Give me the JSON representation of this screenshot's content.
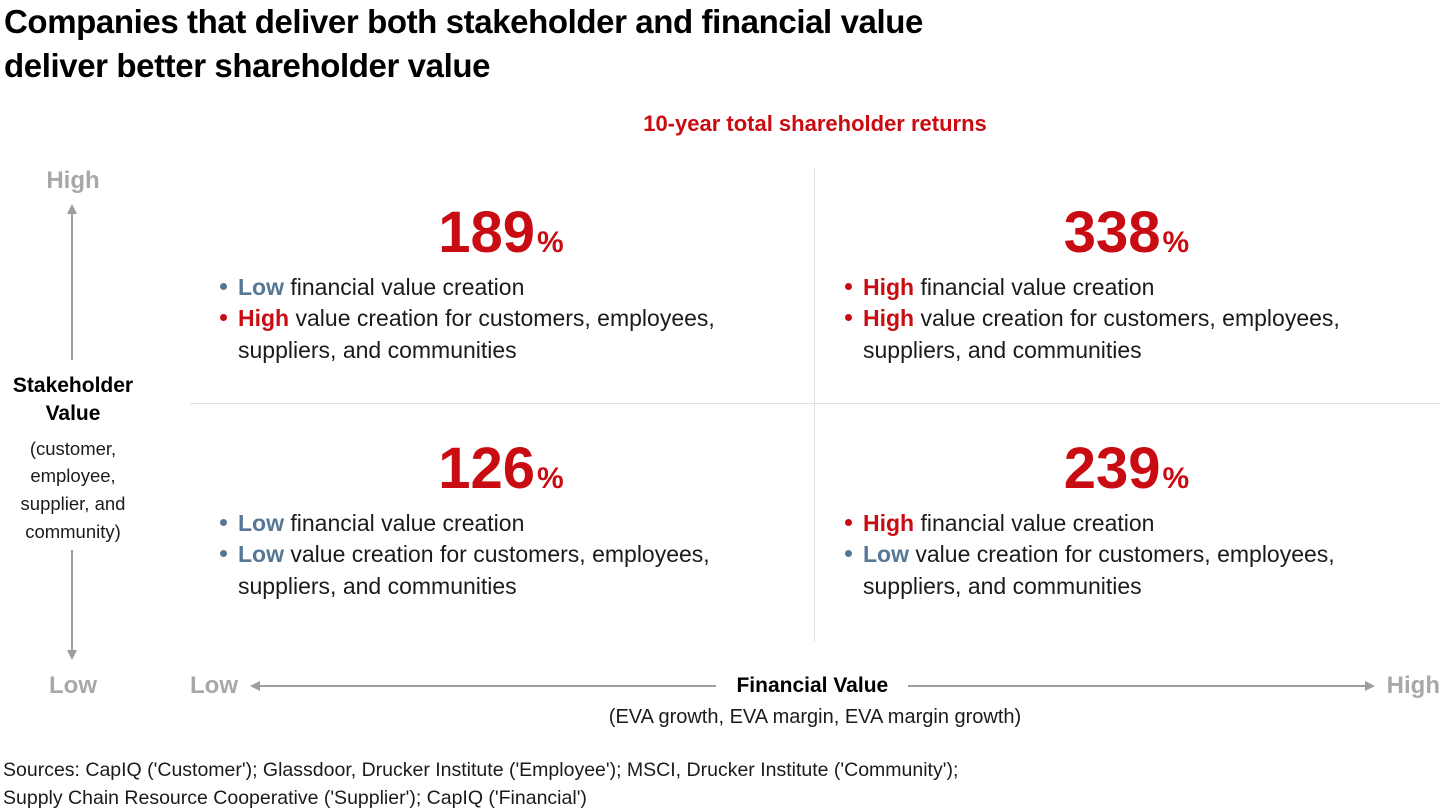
{
  "title": {
    "line1": "Companies that deliver both stakeholder and financial value",
    "line2": "deliver better shareholder value"
  },
  "subtitle": "10-year total shareholder returns",
  "y_axis": {
    "high": "High",
    "low": "Low",
    "title": "Stakeholder Value",
    "subtitle": "(customer, employee, supplier, and community)"
  },
  "x_axis": {
    "low": "Low",
    "high": "High",
    "title": "Financial Value",
    "subtitle": "(EVA growth, EVA margin, EVA margin growth)"
  },
  "quadrants": {
    "top_left": {
      "value": "189",
      "unit": "%",
      "bullets": [
        {
          "color": "blue",
          "lead": "Low",
          "rest": " financial value creation"
        },
        {
          "color": "red",
          "lead": "High",
          "rest": " value creation for customers, employees, suppliers, and communities"
        }
      ]
    },
    "top_right": {
      "value": "338",
      "unit": "%",
      "bullets": [
        {
          "color": "red",
          "lead": "High",
          "rest": " financial value creation"
        },
        {
          "color": "red",
          "lead": "High",
          "rest": " value creation for customers, employees, suppliers, and communities"
        }
      ]
    },
    "bottom_left": {
      "value": "126",
      "unit": "%",
      "bullets": [
        {
          "color": "blue",
          "lead": "Low",
          "rest": " financial value creation"
        },
        {
          "color": "blue",
          "lead": "Low",
          "rest": " value creation for customers, employees, suppliers, and communities"
        }
      ]
    },
    "bottom_right": {
      "value": "239",
      "unit": "%",
      "bullets": [
        {
          "color": "red",
          "lead": "High",
          "rest": " financial value creation"
        },
        {
          "color": "blue",
          "lead": "Low",
          "rest": " value creation for customers, employees, suppliers, and communities"
        }
      ]
    }
  },
  "sources": {
    "line1": "Sources: CapIQ ('Customer'); Glassdoor, Drucker Institute ('Employee'); MSCI, Drucker Institute ('Community');",
    "line2": "Supply Chain Resource Cooperative ('Supplier'); CapIQ ('Financial')"
  },
  "colors": {
    "accent_red": "#c90b12",
    "low_blue": "#567896",
    "axis_label_gray": "#a8a8a8",
    "arrow_gray": "#9d9d9d",
    "divider_gray": "#e0e0e0",
    "body_text": "#1b1b1b"
  },
  "chart_data": {
    "type": "table",
    "title": "10-year total shareholder returns",
    "x_axis_label": "Financial Value (EVA growth, EVA margin, EVA margin growth)",
    "y_axis_label": "Stakeholder Value (customer, employee, supplier, and community)",
    "x_categories": [
      "Low financial value creation",
      "High financial value creation"
    ],
    "y_categories": [
      "High stakeholder value creation",
      "Low stakeholder value creation"
    ],
    "values_10yr_total_shareholder_return_pct": [
      [
        189,
        338
      ],
      [
        126,
        239
      ]
    ],
    "layout": "2x2 quadrant matrix, values shown as large red percentages"
  }
}
